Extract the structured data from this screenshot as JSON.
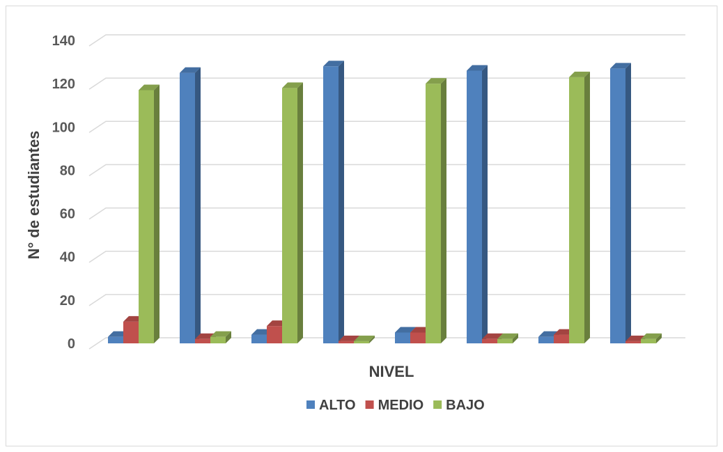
{
  "chart_data": {
    "type": "bar",
    "subtype": "3d-clustered-column",
    "title": "",
    "xlabel": "NIVEL",
    "ylabel": "N° de estudiantes",
    "ylim": [
      0,
      140
    ],
    "yticks": [
      0,
      20,
      40,
      60,
      80,
      100,
      120,
      140
    ],
    "grid": true,
    "legend_position": "bottom",
    "categories": [
      "",
      "",
      "",
      "",
      "",
      "",
      "",
      ""
    ],
    "series": [
      {
        "name": "ALTO",
        "color": "#4F81BD",
        "values": [
          3,
          125,
          4,
          128,
          5,
          126,
          3,
          127
        ]
      },
      {
        "name": "MEDIO",
        "color": "#C0504D",
        "values": [
          10,
          2,
          8,
          1,
          5,
          2,
          4,
          1
        ]
      },
      {
        "name": "BAJO",
        "color": "#9BBB59",
        "values": [
          117,
          3,
          118,
          1,
          120,
          2,
          123,
          2
        ]
      }
    ]
  }
}
